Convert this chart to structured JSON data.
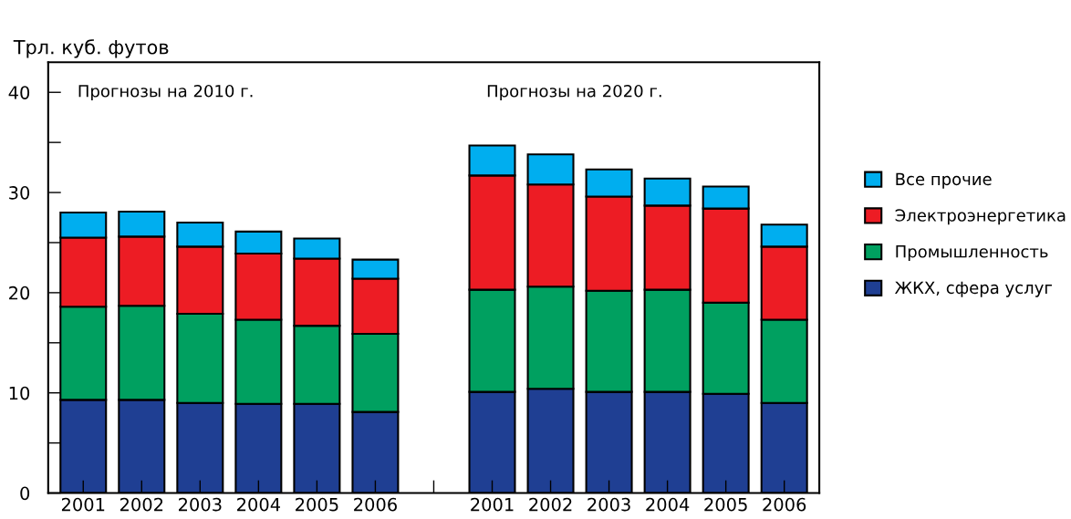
{
  "chart_data": {
    "type": "bar",
    "stacked": true,
    "ylabel": "Трл. куб. футов",
    "annotations": [
      "Прогнозы на 2010 г.",
      "Прогнозы на 2020 г."
    ],
    "categories": [
      "2001",
      "2002",
      "2003",
      "2004",
      "2005",
      "2006",
      null,
      "2001",
      "2002",
      "2003",
      "2004",
      "2005",
      "2006"
    ],
    "series": [
      {
        "name": "ЖКХ, сфера услуг",
        "color": "#1f3f93",
        "values": [
          9.3,
          9.3,
          9.0,
          8.9,
          8.9,
          8.1,
          null,
          10.1,
          10.4,
          10.1,
          10.1,
          9.9,
          9.0
        ]
      },
      {
        "name": "Промышленность",
        "color": "#00a060",
        "values": [
          9.3,
          9.4,
          8.9,
          8.4,
          7.8,
          7.8,
          null,
          10.2,
          10.2,
          10.1,
          10.2,
          9.1,
          8.3
        ]
      },
      {
        "name": "Электроэнергетика",
        "color": "#ed1c24",
        "values": [
          6.9,
          6.9,
          6.7,
          6.6,
          6.7,
          5.5,
          null,
          11.4,
          10.2,
          9.4,
          8.4,
          9.4,
          7.3
        ]
      },
      {
        "name": "Все прочие",
        "color": "#00aeef",
        "values": [
          2.5,
          2.5,
          2.4,
          2.2,
          2.0,
          1.9,
          null,
          3.0,
          3.0,
          2.7,
          2.7,
          2.2,
          2.2
        ]
      }
    ],
    "ylim": [
      0,
      43
    ],
    "yticks": [
      0,
      {
        "value": 5,
        "label": null
      },
      10,
      {
        "value": 15,
        "label": null
      },
      20,
      {
        "value": 25,
        "label": null
      },
      30,
      {
        "value": 35,
        "label": null
      },
      40
    ],
    "grid": false,
    "legend": "right"
  }
}
